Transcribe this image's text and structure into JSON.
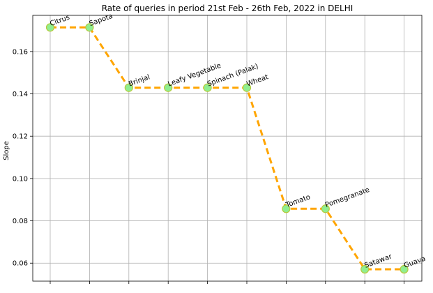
{
  "chart_data": {
    "type": "line",
    "title": "Rate of queries in period 21st Feb - 26th Feb, 2022 in DELHI",
    "xlabel": "",
    "ylabel": "Slope",
    "categories": [
      "Citrus",
      "Sapota",
      "Brinjal",
      "Leafy Vegetable",
      "Spinach (Palak)",
      "Wheat",
      "Tomato",
      "Pomegranate",
      "Satawar",
      "Guava"
    ],
    "values": [
      0.1714,
      0.1714,
      0.1429,
      0.1429,
      0.1429,
      0.1429,
      0.0857,
      0.0857,
      0.0571,
      0.0571
    ],
    "yticks": [
      0.06,
      0.08,
      0.1,
      0.12,
      0.14,
      0.16
    ],
    "ytick_labels": [
      "0.06",
      "0.08",
      "0.10",
      "0.12",
      "0.14",
      "0.16"
    ],
    "ylim": [
      0.0515,
      0.1771
    ],
    "grid": true,
    "line_color": "#ffa500",
    "line_style": "dashed",
    "marker_color": "#90ee90",
    "marker_edge_color": "#b5c93a"
  }
}
